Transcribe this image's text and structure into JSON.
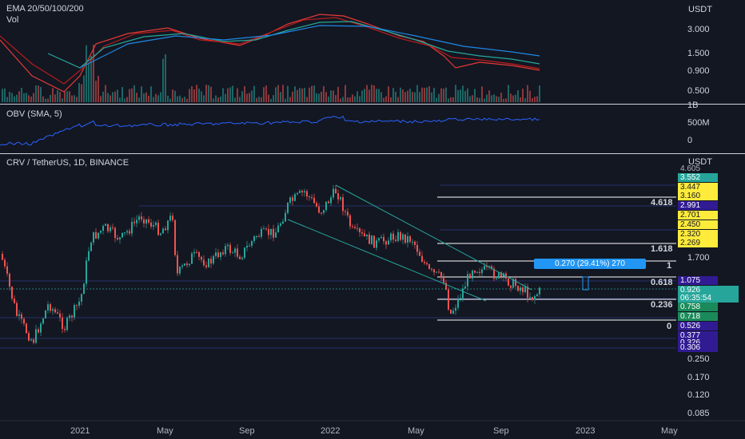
{
  "top_pane": {
    "legend_ema": "EMA 20/50/100/200",
    "legend_vol": "Vol",
    "currency": "USDT",
    "axis_labels": [
      "3.000",
      "1.500",
      "0.900",
      "0.500"
    ]
  },
  "obv_pane": {
    "legend": "OBV (SMA, 5)",
    "axis_labels": [
      "1B",
      "500M",
      "0"
    ]
  },
  "main_pane": {
    "legend": "CRV / TetherUS, 1D, BINANCE",
    "currency": "USDT",
    "axis_labels": [
      "1.700",
      "0.250",
      "0.170",
      "0.120",
      "0.085"
    ],
    "measure_label": "0.270 (29.41%) 270",
    "fib_levels": [
      {
        "label": "4.618"
      },
      {
        "label": "1.618"
      },
      {
        "label": "1"
      },
      {
        "label": "0.618"
      },
      {
        "label": "0.236"
      },
      {
        "label": "0"
      }
    ],
    "price_tags": [
      {
        "text": "4.605",
        "bg": "#131722",
        "fg": "#b2b5be"
      },
      {
        "text": "3.552",
        "bg": "#26a69a",
        "fg": "#ffffff"
      },
      {
        "text": "3.447",
        "bg": "#ffeb3b",
        "fg": "#131722"
      },
      {
        "text": "3.160",
        "bg": "#ffeb3b",
        "fg": "#131722"
      },
      {
        "text": "2.991",
        "bg": "#311b92",
        "fg": "#ffffff"
      },
      {
        "text": "2.701",
        "bg": "#ffeb3b",
        "fg": "#131722"
      },
      {
        "text": "2.450",
        "bg": "#ffeb3b",
        "fg": "#131722"
      },
      {
        "text": "2.320",
        "bg": "#ffeb3b",
        "fg": "#131722"
      },
      {
        "text": "2.269",
        "bg": "#ffeb3b",
        "fg": "#131722"
      },
      {
        "text": "1.075",
        "bg": "#311b92",
        "fg": "#ffffff"
      },
      {
        "text": "0.926",
        "bg": "#26a69a",
        "fg": "#ffffff"
      },
      {
        "text": "06:35:54",
        "bg": "#26a69a",
        "fg": "#ffffff"
      },
      {
        "text": "0.758",
        "bg": "#1b8a5a",
        "fg": "#ffffff"
      },
      {
        "text": "0.718",
        "bg": "#1b8a5a",
        "fg": "#ffffff"
      },
      {
        "text": "0.526",
        "bg": "#311b92",
        "fg": "#ffffff"
      },
      {
        "text": "0.377",
        "bg": "#311b92",
        "fg": "#ffffff"
      },
      {
        "text": "0.326",
        "bg": "#311b92",
        "fg": "#ffffff"
      },
      {
        "text": "0.306",
        "bg": "#311b92",
        "fg": "#ffffff"
      }
    ]
  },
  "time_axis": [
    "2021",
    "May",
    "Sep",
    "2022",
    "May",
    "Sep",
    "2023",
    "May"
  ],
  "colors": {
    "background": "#131722",
    "up": "#26a69a",
    "down": "#ef5350",
    "obv_line": "#2962ff",
    "ema20": "#e53935",
    "ema50": "#b71c1c",
    "ema100": "#26a69a",
    "ema200": "#1e88e5",
    "fib_line": "#ffffff",
    "channel": "#26a69a"
  }
}
